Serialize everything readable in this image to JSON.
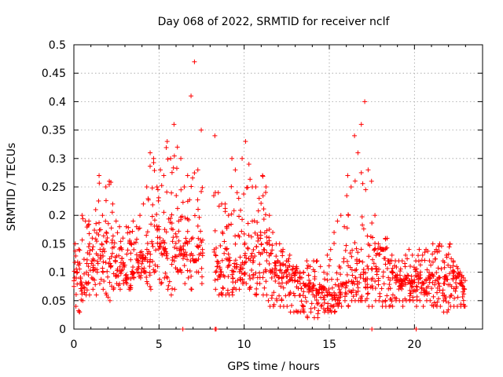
{
  "chart_data": {
    "type": "scatter",
    "title": "Day 068 of 2022, SRMTID for receiver nclf",
    "xlabel": "GPS time / hours",
    "ylabel": "SRMTID / TECUs",
    "xlim": [
      0,
      24
    ],
    "ylim": [
      0,
      0.5
    ],
    "x_ticks": [
      "0",
      "5",
      "10",
      "15",
      "20"
    ],
    "y_ticks": [
      "0",
      "0.05",
      "0.1",
      "0.15",
      "0.2",
      "0.25",
      "0.3",
      "0.35",
      "0.4",
      "0.45",
      "0.5"
    ],
    "grid": true,
    "marker": "plus",
    "marker_color": "#ff0000",
    "series": [
      {
        "x_hours": [
          0.0,
          0.2,
          0.4,
          0.6,
          0.8,
          1.0,
          1.2,
          1.4,
          1.6,
          1.8,
          2.0,
          2.2,
          2.4,
          2.6,
          2.8,
          3.0,
          3.2,
          3.4,
          3.6,
          3.8,
          4.0,
          4.2,
          4.4,
          4.6,
          4.8,
          5.0,
          5.2,
          5.4,
          5.6,
          5.8,
          6.0,
          6.2,
          6.4,
          6.6,
          6.8,
          7.0,
          7.2,
          7.4,
          8.2,
          8.4,
          8.6,
          8.8,
          9.0,
          9.2,
          9.4,
          9.6,
          9.8,
          10.0,
          10.2,
          10.4,
          10.6,
          10.8,
          11.0,
          11.2,
          11.4,
          11.6,
          11.8,
          12.0,
          12.2,
          12.4,
          12.6,
          12.8,
          13.0,
          13.2,
          13.4,
          13.6,
          13.8,
          14.0,
          14.2,
          14.4,
          14.6,
          14.8,
          15.0,
          15.2,
          15.4,
          15.6,
          15.8,
          16.0,
          16.2,
          16.4,
          16.6,
          16.8,
          17.0,
          17.2,
          17.4,
          17.6,
          17.8,
          18.0,
          18.2,
          18.4,
          18.6,
          18.8,
          19.0,
          19.2,
          19.4,
          19.6,
          19.8,
          20.0,
          20.2,
          20.4,
          20.6,
          20.8,
          21.0,
          21.2,
          21.4,
          21.6,
          21.8,
          22.0,
          22.2,
          22.4,
          22.6,
          22.8
        ],
        "y_median": [
          0.09,
          0.085,
          0.08,
          0.1,
          0.13,
          0.12,
          0.1,
          0.13,
          0.15,
          0.12,
          0.13,
          0.15,
          0.12,
          0.1,
          0.12,
          0.09,
          0.13,
          0.1,
          0.12,
          0.11,
          0.13,
          0.14,
          0.15,
          0.16,
          0.18,
          0.15,
          0.14,
          0.13,
          0.17,
          0.16,
          0.15,
          0.14,
          0.14,
          0.15,
          0.13,
          0.12,
          0.15,
          0.14,
          0.13,
          0.11,
          0.1,
          0.14,
          0.11,
          0.1,
          0.12,
          0.11,
          0.1,
          0.13,
          0.14,
          0.12,
          0.15,
          0.16,
          0.14,
          0.12,
          0.12,
          0.1,
          0.1,
          0.09,
          0.1,
          0.1,
          0.09,
          0.085,
          0.1,
          0.09,
          0.08,
          0.075,
          0.07,
          0.075,
          0.06,
          0.07,
          0.07,
          0.065,
          0.06,
          0.055,
          0.06,
          0.07,
          0.08,
          0.075,
          0.09,
          0.1,
          0.12,
          0.1,
          0.1,
          0.11,
          0.12,
          0.11,
          0.13,
          0.14,
          0.16,
          0.12,
          0.1,
          0.09,
          0.085,
          0.08,
          0.09,
          0.085,
          0.08,
          0.075,
          0.09,
          0.08,
          0.085,
          0.09,
          0.085,
          0.09,
          0.09,
          0.08,
          0.085,
          0.085,
          0.1,
          0.09,
          0.08,
          0.075
        ],
        "y_max": [
          0.15,
          0.14,
          0.2,
          0.19,
          0.19,
          0.16,
          0.21,
          0.27,
          0.2,
          0.25,
          0.26,
          0.22,
          0.19,
          0.18,
          0.16,
          0.18,
          0.17,
          0.19,
          0.18,
          0.2,
          0.22,
          0.25,
          0.31,
          0.3,
          0.25,
          0.28,
          0.27,
          0.33,
          0.3,
          0.36,
          0.32,
          0.3,
          0.25,
          0.27,
          0.41,
          0.47,
          0.28,
          0.35,
          0.34,
          0.24,
          0.22,
          0.22,
          0.2,
          0.3,
          0.28,
          0.23,
          0.3,
          0.33,
          0.29,
          0.25,
          0.25,
          0.23,
          0.27,
          0.25,
          0.2,
          0.17,
          0.15,
          0.15,
          0.14,
          0.12,
          0.13,
          0.11,
          0.11,
          0.1,
          0.1,
          0.12,
          0.11,
          0.12,
          0.12,
          0.11,
          0.1,
          0.13,
          0.14,
          0.17,
          0.19,
          0.2,
          0.18,
          0.27,
          0.25,
          0.34,
          0.31,
          0.36,
          0.4,
          0.28,
          0.26,
          0.2,
          0.15,
          0.14,
          0.14,
          0.12,
          0.13,
          0.12,
          0.12,
          0.12,
          0.13,
          0.14,
          0.13,
          0.12,
          0.14,
          0.13,
          0.14,
          0.12,
          0.15,
          0.14,
          0.15,
          0.12,
          0.13,
          0.15,
          0.12,
          0.11,
          0.1,
          0.09
        ],
        "y_min": [
          0.04,
          0.03,
          0.05,
          0.06,
          0.06,
          0.07,
          0.06,
          0.08,
          0.07,
          0.06,
          0.05,
          0.07,
          0.08,
          0.07,
          0.08,
          0.08,
          0.07,
          0.09,
          0.1,
          0.09,
          0.1,
          0.08,
          0.07,
          0.1,
          0.11,
          0.08,
          0.09,
          0.07,
          0.06,
          0.07,
          0.1,
          0.1,
          0.08,
          0.09,
          0.07,
          0.12,
          0.1,
          0.08,
          0.07,
          0.06,
          0.06,
          0.06,
          0.06,
          0.06,
          0.07,
          0.07,
          0.08,
          0.08,
          0.07,
          0.09,
          0.06,
          0.08,
          0.06,
          0.06,
          0.04,
          0.04,
          0.05,
          0.04,
          0.04,
          0.04,
          0.03,
          0.03,
          0.03,
          0.03,
          0.03,
          0.02,
          0.03,
          0.02,
          0.02,
          0.04,
          0.03,
          0.03,
          0.03,
          0.03,
          0.04,
          0.04,
          0.05,
          0.04,
          0.05,
          0.05,
          0.05,
          0.05,
          0.05,
          0.04,
          0.04,
          0.05,
          0.05,
          0.04,
          0.04,
          0.04,
          0.04,
          0.05,
          0.05,
          0.04,
          0.05,
          0.05,
          0.05,
          0.04,
          0.05,
          0.04,
          0.05,
          0.05,
          0.04,
          0.04,
          0.04,
          0.03,
          0.03,
          0.04,
          0.04,
          0.04,
          0.04,
          0.04
        ],
        "zero_points_x": [
          6.4,
          8.3,
          8.35,
          17.5,
          20.1
        ]
      }
    ]
  }
}
